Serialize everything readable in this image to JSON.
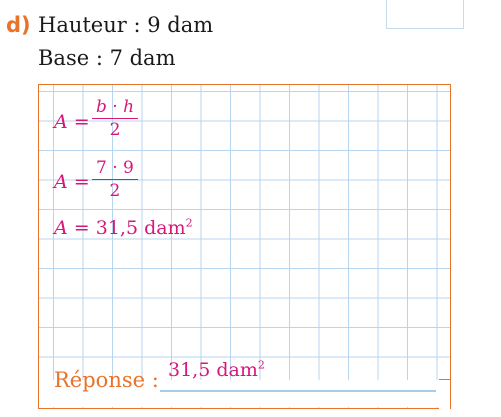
{
  "exercise": {
    "label": "d)",
    "line1": "Hauteur : 9 dam",
    "line2": "Base : 7 dam"
  },
  "work": {
    "eq1_lhs": "A",
    "eq1_equals": "=",
    "eq1_num": "b · h",
    "eq1_den": "2",
    "eq2_lhs": "A",
    "eq2_equals": "=",
    "eq2_num": "7 · 9",
    "eq2_den": "2",
    "eq3_lhs": "A",
    "eq3_rest": "= 31,5 dam",
    "eq3_exp": "2"
  },
  "answer": {
    "label": "Réponse :",
    "value": "31,5 dam",
    "value_exp": "2"
  },
  "colors": {
    "accent_orange": "#e8732a",
    "answer_pink": "#d6187a",
    "grid_blue": "#b7d6ee"
  }
}
